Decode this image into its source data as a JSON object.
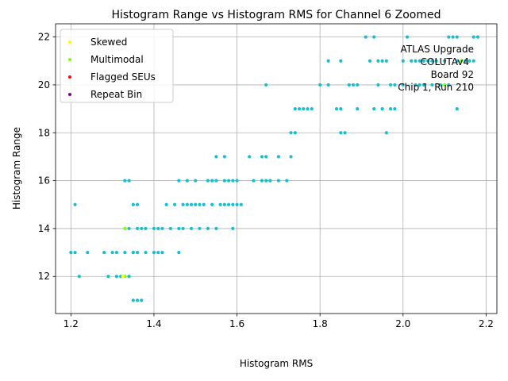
{
  "chart_data": {
    "type": "scatter",
    "title": "Histogram Range vs Histogram RMS for Channel 6 Zoomed",
    "xlabel": "Histogram RMS",
    "ylabel": "Histogram Range",
    "xlim": [
      1.163,
      2.226
    ],
    "ylim": [
      10.45,
      22.55
    ],
    "xticks": [
      1.2,
      1.4,
      1.6,
      1.8,
      2.0,
      2.2
    ],
    "xtick_labels": [
      "1.2",
      "1.4",
      "1.6",
      "1.8",
      "2.0",
      "2.2"
    ],
    "yticks": [
      12,
      14,
      16,
      18,
      20,
      22
    ],
    "ytick_labels": [
      "12",
      "14",
      "16",
      "18",
      "20",
      "22"
    ],
    "grid": true,
    "legend_position": "upper-left",
    "annotation_lines": [
      "ATLAS Upgrade",
      "COLUTAv4",
      "Board 92",
      "Chip 1, Run 210"
    ],
    "legend": [
      {
        "label": "Skewed",
        "color": "#ffff00"
      },
      {
        "label": "Multimodal",
        "color": "#7fff00"
      },
      {
        "label": "Flagged SEUs",
        "color": "#ff0000"
      },
      {
        "label": "Repeat Bin",
        "color": "#800080"
      }
    ],
    "series": [
      {
        "color": "#17becf",
        "points": [
          [
            1.2,
            13
          ],
          [
            1.21,
            13
          ],
          [
            1.21,
            15
          ],
          [
            1.22,
            12
          ],
          [
            1.24,
            13
          ],
          [
            1.28,
            13
          ],
          [
            1.29,
            12
          ],
          [
            1.3,
            13
          ],
          [
            1.31,
            12
          ],
          [
            1.31,
            13
          ],
          [
            1.32,
            12
          ],
          [
            1.33,
            16
          ],
          [
            1.33,
            13
          ],
          [
            1.34,
            16
          ],
          [
            1.34,
            12
          ],
          [
            1.34,
            14
          ],
          [
            1.35,
            11
          ],
          [
            1.35,
            13
          ],
          [
            1.35,
            15
          ],
          [
            1.35,
            13
          ],
          [
            1.36,
            14
          ],
          [
            1.36,
            11
          ],
          [
            1.36,
            15
          ],
          [
            1.36,
            13
          ],
          [
            1.37,
            14
          ],
          [
            1.37,
            11
          ],
          [
            1.38,
            14
          ],
          [
            1.38,
            13
          ],
          [
            1.4,
            13
          ],
          [
            1.4,
            14
          ],
          [
            1.41,
            13
          ],
          [
            1.41,
            14
          ],
          [
            1.42,
            13
          ],
          [
            1.42,
            14
          ],
          [
            1.43,
            15
          ],
          [
            1.44,
            14
          ],
          [
            1.45,
            15
          ],
          [
            1.46,
            16
          ],
          [
            1.46,
            14
          ],
          [
            1.46,
            13
          ],
          [
            1.47,
            15
          ],
          [
            1.47,
            14
          ],
          [
            1.48,
            15
          ],
          [
            1.48,
            16
          ],
          [
            1.49,
            14
          ],
          [
            1.49,
            15
          ],
          [
            1.5,
            16
          ],
          [
            1.5,
            15
          ],
          [
            1.51,
            15
          ],
          [
            1.51,
            14
          ],
          [
            1.52,
            15
          ],
          [
            1.53,
            14
          ],
          [
            1.53,
            16
          ],
          [
            1.54,
            15
          ],
          [
            1.54,
            16
          ],
          [
            1.55,
            17
          ],
          [
            1.55,
            16
          ],
          [
            1.55,
            14
          ],
          [
            1.56,
            15
          ],
          [
            1.57,
            17
          ],
          [
            1.57,
            16
          ],
          [
            1.57,
            15
          ],
          [
            1.58,
            16
          ],
          [
            1.58,
            15
          ],
          [
            1.59,
            16
          ],
          [
            1.59,
            14
          ],
          [
            1.59,
            15
          ],
          [
            1.6,
            15
          ],
          [
            1.6,
            16
          ],
          [
            1.61,
            15
          ],
          [
            1.63,
            17
          ],
          [
            1.64,
            16
          ],
          [
            1.66,
            17
          ],
          [
            1.66,
            16
          ],
          [
            1.67,
            16
          ],
          [
            1.67,
            17
          ],
          [
            1.67,
            20
          ],
          [
            1.68,
            16
          ],
          [
            1.7,
            16
          ],
          [
            1.7,
            17
          ],
          [
            1.72,
            16
          ],
          [
            1.73,
            17
          ],
          [
            1.73,
            18
          ],
          [
            1.74,
            18
          ],
          [
            1.74,
            19
          ],
          [
            1.75,
            19
          ],
          [
            1.76,
            19
          ],
          [
            1.77,
            19
          ],
          [
            1.78,
            19
          ],
          [
            1.8,
            20
          ],
          [
            1.82,
            21
          ],
          [
            1.82,
            20
          ],
          [
            1.84,
            19
          ],
          [
            1.85,
            21
          ],
          [
            1.85,
            19
          ],
          [
            1.85,
            18
          ],
          [
            1.86,
            18
          ],
          [
            1.87,
            20
          ],
          [
            1.88,
            20
          ],
          [
            1.89,
            19
          ],
          [
            1.89,
            20
          ],
          [
            1.91,
            22
          ],
          [
            1.92,
            21
          ],
          [
            1.93,
            19
          ],
          [
            1.93,
            22
          ],
          [
            1.94,
            21
          ],
          [
            1.94,
            20
          ],
          [
            1.95,
            19
          ],
          [
            1.95,
            21
          ],
          [
            1.96,
            21
          ],
          [
            1.96,
            18
          ],
          [
            1.97,
            20
          ],
          [
            1.97,
            19
          ],
          [
            1.98,
            19
          ],
          [
            1.98,
            20
          ],
          [
            2.0,
            21
          ],
          [
            2.0,
            20
          ],
          [
            2.01,
            22
          ],
          [
            2.02,
            21
          ],
          [
            2.03,
            21
          ],
          [
            2.03,
            20
          ],
          [
            2.04,
            20
          ],
          [
            2.04,
            21
          ],
          [
            2.05,
            20
          ],
          [
            2.05,
            21
          ],
          [
            2.06,
            21
          ],
          [
            2.07,
            20
          ],
          [
            2.07,
            21
          ],
          [
            2.08,
            21
          ],
          [
            2.09,
            20
          ],
          [
            2.1,
            21
          ],
          [
            2.11,
            22
          ],
          [
            2.11,
            20
          ],
          [
            2.12,
            22
          ],
          [
            2.13,
            22
          ],
          [
            2.13,
            19
          ],
          [
            2.13,
            21
          ],
          [
            2.14,
            21
          ],
          [
            2.15,
            21
          ],
          [
            2.16,
            21
          ],
          [
            2.17,
            22
          ],
          [
            2.17,
            21
          ],
          [
            2.18,
            22
          ]
        ]
      },
      {
        "color": "#7fff00",
        "points": [
          [
            1.33,
            14
          ],
          [
            1.33,
            12
          ],
          [
            2.1,
            20
          ],
          [
            2.14,
            21
          ]
        ]
      },
      {
        "color": "#ffff00",
        "points": [
          [
            1.325,
            12
          ]
        ]
      }
    ]
  }
}
